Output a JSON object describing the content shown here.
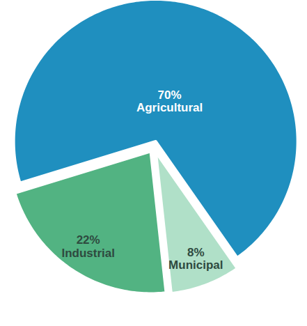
{
  "chart_data": {
    "type": "pie",
    "categories": [
      "Agricultural",
      "Industrial",
      "Municipal"
    ],
    "values": [
      70,
      22,
      8
    ],
    "value_labels": [
      "70%",
      "22%",
      "8%"
    ],
    "colors": [
      "#1f8fbf",
      "#52b382",
      "#b0e0c8"
    ],
    "data_labels": true
  }
}
